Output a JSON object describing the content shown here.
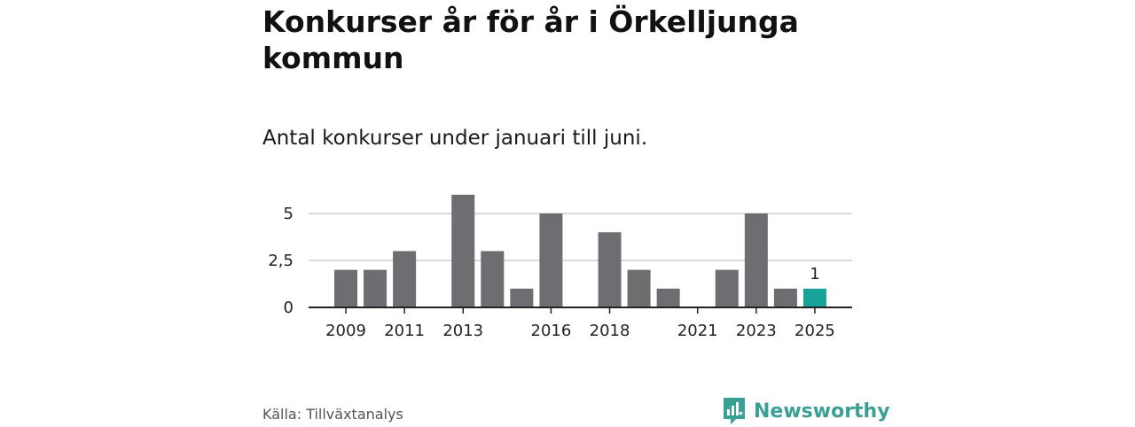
{
  "title": "Konkurser år för år i Örkelljunga kommun",
  "subtitle": "Antal konkurser under januari till juni.",
  "source": "Källa: Tillväxtanalys",
  "brand": "Newsworthy",
  "colors": {
    "bar": "#6e6d72",
    "highlight": "#17a398",
    "brand": "#3a9f94",
    "grid": "#d9d9d9"
  },
  "chart_data": {
    "type": "bar",
    "categories": [
      "2009",
      "2010",
      "2011",
      "2012",
      "2013",
      "2014",
      "2015",
      "2016",
      "2017",
      "2018",
      "2019",
      "2020",
      "2021",
      "2022",
      "2023",
      "2024",
      "2025"
    ],
    "values": [
      2,
      2,
      3,
      0,
      6,
      3,
      1,
      5,
      0,
      4,
      2,
      1,
      0,
      2,
      5,
      1,
      1
    ],
    "x_tick_labels": [
      "2009",
      "2011",
      "2013",
      "2016",
      "2018",
      "2021",
      "2023",
      "2025"
    ],
    "y_ticks": [
      0,
      2.5,
      5
    ],
    "y_tick_labels": [
      "0",
      "2,5",
      "5"
    ],
    "ylim": [
      0,
      6
    ],
    "highlight_category": "2025",
    "data_labels": [
      {
        "category": "2025",
        "text": "1"
      }
    ],
    "grid": true
  }
}
